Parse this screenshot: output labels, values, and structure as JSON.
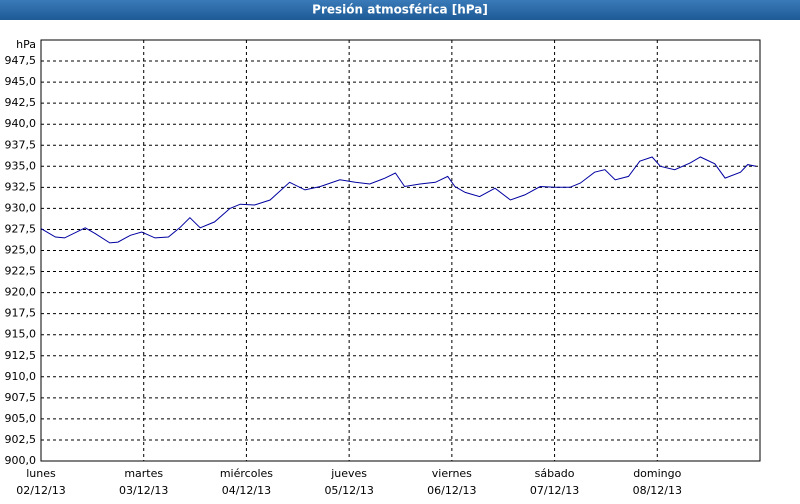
{
  "chart_data": {
    "type": "line",
    "title": "Presión atmosférica [hPa]",
    "unit_label": "hPa",
    "xlim": [
      0,
      7
    ],
    "ylim": [
      900,
      950
    ],
    "xticks": [
      {
        "value": 0,
        "label": "lunes"
      },
      {
        "value": 1,
        "label": "martes"
      },
      {
        "value": 2,
        "label": "miércoles"
      },
      {
        "value": 3,
        "label": "jueves"
      },
      {
        "value": 4,
        "label": "viernes"
      },
      {
        "value": 5,
        "label": "sábado"
      },
      {
        "value": 6,
        "label": "domingo"
      }
    ],
    "xtick_dates": [
      "02/12/13",
      "03/12/13",
      "04/12/13",
      "05/12/13",
      "06/12/13",
      "07/12/13",
      "08/12/13"
    ],
    "yticks": [
      {
        "value": 900,
        "label": "900,0"
      },
      {
        "value": 902.5,
        "label": "902,5"
      },
      {
        "value": 905,
        "label": "905,0"
      },
      {
        "value": 907.5,
        "label": "907,5"
      },
      {
        "value": 910,
        "label": "910,0"
      },
      {
        "value": 912.5,
        "label": "912,5"
      },
      {
        "value": 915,
        "label": "915,0"
      },
      {
        "value": 917.5,
        "label": "917,5"
      },
      {
        "value": 920,
        "label": "920,0"
      },
      {
        "value": 922.5,
        "label": "922,5"
      },
      {
        "value": 925,
        "label": "925,0"
      },
      {
        "value": 927.5,
        "label": "927,5"
      },
      {
        "value": 930,
        "label": "930,0"
      },
      {
        "value": 932.5,
        "label": "932,5"
      },
      {
        "value": 935,
        "label": "935,0"
      },
      {
        "value": 937.5,
        "label": "937,5"
      },
      {
        "value": 940,
        "label": "940,0"
      },
      {
        "value": 942.5,
        "label": "942,5"
      },
      {
        "value": 945,
        "label": "945,0"
      },
      {
        "value": 947.5,
        "label": "947,5"
      }
    ],
    "grid": true,
    "color": "#0000a0",
    "x": [
      0,
      0.14,
      0.23,
      0.43,
      0.53,
      0.67,
      0.75,
      0.87,
      0.98,
      1.11,
      1.24,
      1.35,
      1.45,
      1.55,
      1.69,
      1.84,
      1.94,
      2.08,
      2.23,
      2.42,
      2.57,
      2.72,
      2.91,
      3.06,
      3.2,
      3.35,
      3.45,
      3.54,
      3.69,
      3.84,
      3.96,
      4.03,
      4.13,
      4.27,
      4.42,
      4.57,
      4.71,
      4.86,
      5.0,
      5.15,
      5.25,
      5.39,
      5.49,
      5.59,
      5.72,
      5.83,
      5.95,
      6.03,
      6.17,
      6.32,
      6.42,
      6.56,
      6.66,
      6.81,
      6.88,
      6.96
    ],
    "values": [
      927.6,
      926.6,
      926.5,
      927.7,
      927.0,
      925.9,
      926.0,
      926.8,
      927.2,
      926.5,
      926.6,
      927.7,
      928.9,
      927.7,
      928.4,
      930.0,
      930.5,
      930.4,
      931.0,
      933.1,
      932.2,
      932.6,
      933.4,
      933.1,
      932.9,
      933.6,
      934.2,
      932.6,
      932.9,
      933.1,
      933.8,
      932.6,
      931.9,
      931.4,
      932.4,
      931.0,
      931.6,
      932.6,
      932.5,
      932.5,
      933.0,
      934.3,
      934.6,
      933.4,
      933.8,
      935.6,
      936.1,
      935.0,
      934.6,
      935.4,
      936.1,
      935.3,
      933.6,
      934.3,
      935.2,
      935.0
    ]
  }
}
